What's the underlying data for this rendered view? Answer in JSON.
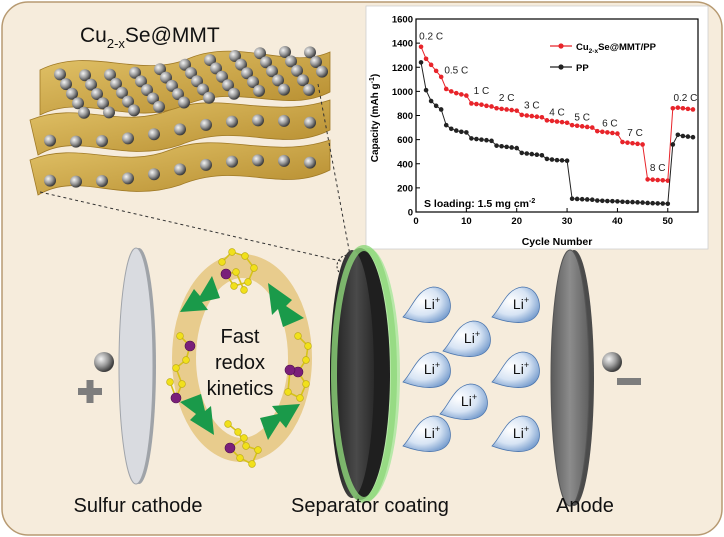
{
  "material_label": {
    "main": "Cu",
    "sub": "2-x",
    "rest": "Se@MMT"
  },
  "center_text": [
    "Fast",
    "redox",
    "kinetics"
  ],
  "ion": {
    "symbol": "Li",
    "charge": "+"
  },
  "bottom_labels": {
    "cathode": "Sulfur cathode",
    "separator": "Separator coating",
    "anode": "Anode"
  },
  "colors": {
    "background": "#f6ecdc",
    "mmt_sheet": "#c9a448",
    "green_arrow": "#1a9a4a",
    "red_series": "#e8242a",
    "black_series": "#222222",
    "li_drop": "#6a93c8"
  },
  "chart_data": {
    "type": "line",
    "xlabel": "Cycle Number",
    "ylabel": "Capacity (mAh g",
    "ylabel_sup": "-1",
    "ylabel_close": ")",
    "xlim": [
      0,
      56
    ],
    "ylim": [
      0,
      1600
    ],
    "xticks": [
      0,
      10,
      20,
      30,
      40,
      50
    ],
    "yticks": [
      0,
      200,
      400,
      600,
      800,
      1000,
      1200,
      1400,
      1600
    ],
    "loading_note": "S loading: 1.5 mg cm",
    "loading_sup": "-2",
    "legend_position": "top-right",
    "rate_labels": [
      {
        "text": "0.2 C",
        "x": 3,
        "y": 1430
      },
      {
        "text": "0.5 C",
        "x": 8,
        "y": 1150
      },
      {
        "text": "1 C",
        "x": 13,
        "y": 980
      },
      {
        "text": "2 C",
        "x": 18,
        "y": 920
      },
      {
        "text": "3 C",
        "x": 23,
        "y": 860
      },
      {
        "text": "4 C",
        "x": 28,
        "y": 800
      },
      {
        "text": "5 C",
        "x": 33,
        "y": 760
      },
      {
        "text": "6 C",
        "x": 38.5,
        "y": 710
      },
      {
        "text": "7 C",
        "x": 43.5,
        "y": 630
      },
      {
        "text": "8 C",
        "x": 48,
        "y": 340
      },
      {
        "text": "0.2 C",
        "x": 53.5,
        "y": 920
      }
    ],
    "series": [
      {
        "name": "Cu",
        "name_sub": "2-x",
        "name_rest": "Se@MMT/PP",
        "color": "#e8242a",
        "x": [
          1,
          2,
          3,
          4,
          5,
          6,
          7,
          8,
          9,
          10,
          11,
          12,
          13,
          14,
          15,
          16,
          17,
          18,
          19,
          20,
          21,
          22,
          23,
          24,
          25,
          26,
          27,
          28,
          29,
          30,
          31,
          32,
          33,
          34,
          35,
          36,
          37,
          38,
          39,
          40,
          41,
          42,
          43,
          44,
          45,
          46,
          47,
          48,
          49,
          50,
          51,
          52,
          53,
          54,
          55
        ],
        "values": [
          1370,
          1270,
          1220,
          1170,
          1120,
          1020,
          1000,
          985,
          975,
          965,
          900,
          895,
          890,
          880,
          875,
          860,
          855,
          850,
          845,
          840,
          805,
          800,
          795,
          790,
          785,
          760,
          755,
          750,
          745,
          740,
          720,
          715,
          710,
          705,
          700,
          670,
          665,
          660,
          655,
          650,
          580,
          575,
          570,
          565,
          560,
          270,
          268,
          265,
          263,
          260,
          860,
          865,
          860,
          855,
          850
        ]
      },
      {
        "name": "PP",
        "color": "#222222",
        "x": [
          1,
          2,
          3,
          4,
          5,
          6,
          7,
          8,
          9,
          10,
          11,
          12,
          13,
          14,
          15,
          16,
          17,
          18,
          19,
          20,
          21,
          22,
          23,
          24,
          25,
          26,
          27,
          28,
          29,
          30,
          31,
          32,
          33,
          34,
          35,
          36,
          37,
          38,
          39,
          40,
          41,
          42,
          43,
          44,
          45,
          46,
          47,
          48,
          49,
          50,
          51,
          52,
          53,
          54,
          55
        ],
        "values": [
          1240,
          1010,
          920,
          880,
          850,
          720,
          690,
          675,
          665,
          660,
          610,
          605,
          600,
          595,
          590,
          550,
          545,
          540,
          535,
          530,
          490,
          485,
          480,
          475,
          470,
          440,
          435,
          430,
          428,
          425,
          110,
          108,
          106,
          104,
          102,
          95,
          93,
          91,
          90,
          88,
          85,
          83,
          82,
          80,
          78,
          75,
          73,
          71,
          70,
          68,
          560,
          640,
          630,
          625,
          620
        ]
      }
    ]
  }
}
